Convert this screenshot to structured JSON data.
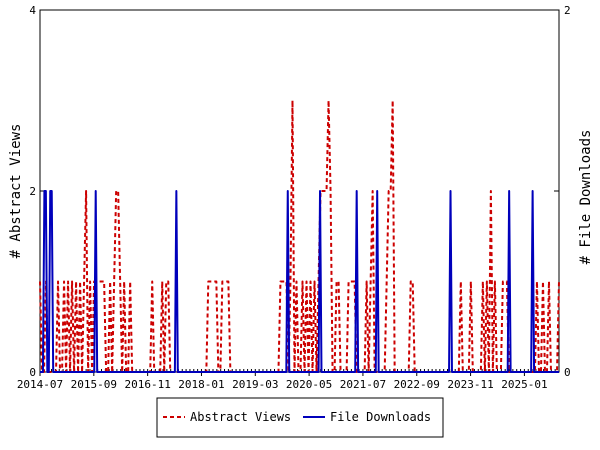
{
  "chart_data": {
    "type": "line",
    "ylabel_left": "# Abstract Views",
    "ylabel_right": "# File Downloads",
    "ylim_left": [
      0,
      4
    ],
    "ylim_right": [
      0,
      2
    ],
    "yticks_left": [
      "0",
      "2",
      "4"
    ],
    "yticks_right": [
      "0",
      "1",
      "2"
    ],
    "x_tick_labels": [
      "2014-07",
      "2015-09",
      "2016-11",
      "2018-01",
      "2019-03",
      "2020-05",
      "2021-07",
      "2022-09",
      "2023-11",
      "2025-01"
    ],
    "x_start": "2014-07",
    "x_end": "2025-10",
    "legend_position": "bottom-center",
    "grid": false,
    "series": [
      {
        "name": "Abstract Views",
        "axis": "left",
        "color": "#cc0000",
        "style": "dashed",
        "values": [
          1,
          0,
          0,
          1,
          0,
          0,
          0,
          0,
          0,
          1,
          0,
          0,
          1,
          0,
          1,
          0,
          1,
          0,
          1,
          0,
          1,
          0,
          1,
          2,
          0,
          1,
          0,
          1,
          1,
          1,
          1,
          1,
          1,
          0,
          0,
          1,
          0,
          1,
          2,
          2,
          1,
          0,
          1,
          0,
          0,
          1,
          0,
          0,
          0,
          0,
          0,
          0,
          0,
          0,
          0,
          0,
          1,
          0,
          0,
          0,
          0,
          1,
          0,
          1,
          1,
          0,
          0,
          0,
          0,
          0,
          0,
          0,
          0,
          0,
          0,
          0,
          0,
          0,
          0,
          0,
          0,
          0,
          0,
          0,
          1,
          1,
          1,
          1,
          1,
          0,
          0,
          1,
          1,
          1,
          1,
          0,
          0,
          0,
          0,
          0,
          0,
          0,
          0,
          0,
          0,
          0,
          0,
          0,
          0,
          0,
          0,
          0,
          0,
          0,
          0,
          0,
          0,
          0,
          0,
          0,
          1,
          1,
          1,
          1,
          0,
          1,
          3,
          0,
          1,
          0,
          0,
          1,
          0,
          1,
          0,
          1,
          0,
          1,
          0,
          1,
          2,
          2,
          2,
          2,
          3,
          2,
          0,
          0,
          1,
          1,
          0,
          0,
          0,
          0,
          1,
          1,
          1,
          1,
          0,
          0,
          0,
          0,
          0,
          1,
          0,
          1,
          2,
          0,
          0,
          0,
          0,
          0,
          0,
          1,
          2,
          2,
          3,
          0,
          0,
          0,
          0,
          0,
          0,
          0,
          0,
          1,
          1,
          0,
          0,
          0,
          0,
          0,
          0,
          0,
          0,
          0,
          0,
          0,
          0,
          0,
          0,
          0,
          0,
          0,
          0,
          0,
          0,
          0,
          0,
          0,
          1,
          0,
          0,
          0,
          0,
          1,
          0,
          0,
          0,
          0,
          0,
          1,
          0,
          1,
          0,
          2,
          0,
          1,
          0,
          0,
          0,
          1,
          1,
          1,
          0,
          0,
          0,
          0,
          0,
          0,
          0,
          0,
          0,
          0,
          0,
          0,
          0,
          0,
          1,
          0,
          0,
          1,
          0,
          0,
          1,
          0,
          0,
          0,
          0,
          1
        ]
      },
      {
        "name": "File Downloads",
        "axis": "right",
        "color": "#0000bb",
        "style": "solid",
        "values": [
          0,
          0,
          0,
          1,
          1,
          0,
          0,
          1,
          1,
          0,
          0,
          0,
          0,
          0,
          0,
          0,
          0,
          0,
          0,
          0,
          0,
          0,
          0,
          0,
          0,
          0,
          0,
          0,
          0,
          0,
          0,
          0,
          0,
          0,
          0,
          0,
          0,
          0,
          1,
          0,
          0,
          0,
          0,
          0,
          0,
          0,
          0,
          0,
          0,
          0,
          0,
          0,
          0,
          0,
          0,
          0,
          0,
          0,
          0,
          0,
          0,
          0,
          0,
          0,
          0,
          0,
          0,
          0,
          0,
          0,
          0,
          0,
          0,
          0,
          0,
          0,
          0,
          0,
          0,
          0,
          0,
          0,
          0,
          0,
          0,
          0,
          0,
          0,
          0,
          0,
          0,
          0,
          0,
          1,
          0,
          0,
          0,
          0,
          0,
          0,
          0,
          0,
          0,
          0,
          0,
          0,
          0,
          0,
          0,
          0,
          0,
          0,
          0,
          0,
          0,
          0,
          0,
          0,
          0,
          0,
          0,
          0,
          0,
          0,
          0,
          0,
          0,
          0,
          0,
          0,
          0,
          0,
          0,
          0,
          0,
          0,
          0,
          0,
          0,
          0,
          0,
          0,
          0,
          0,
          0,
          0,
          0,
          0,
          0,
          0,
          0,
          0,
          0,
          0,
          0,
          0,
          0,
          0,
          0,
          0,
          0,
          0,
          0,
          0,
          0,
          0,
          0,
          0,
          0,
          1,
          0,
          0,
          0,
          0,
          0,
          0,
          0,
          0,
          0,
          0,
          0,
          0,
          0,
          0,
          0,
          0,
          0,
          0,
          0,
          0,
          0,
          1,
          0,
          0,
          0,
          0,
          0,
          0,
          0,
          0,
          0,
          0,
          0,
          0,
          0,
          0,
          0,
          0,
          0,
          0,
          0,
          0,
          0,
          0,
          0,
          0,
          1,
          0,
          0,
          0,
          0,
          0,
          0,
          0,
          0,
          0,
          0,
          0,
          0,
          0,
          1,
          0,
          0,
          0,
          0,
          0,
          0,
          0,
          0,
          0,
          0,
          0,
          0,
          0,
          0,
          0,
          0,
          0,
          0,
          0,
          0,
          0,
          0,
          0,
          0,
          0,
          0,
          0,
          0,
          0,
          0,
          0,
          0,
          0,
          0,
          0,
          0,
          0,
          0,
          0,
          0,
          0,
          0,
          0,
          0,
          0,
          0,
          0,
          0,
          0,
          1,
          0,
          0,
          0,
          0,
          0,
          0,
          0,
          0,
          0,
          0,
          0,
          0,
          0,
          0,
          0,
          0,
          0,
          0,
          0,
          0,
          0,
          0,
          0,
          0,
          0,
          0,
          0,
          0,
          0,
          0,
          0,
          0,
          0,
          0,
          0,
          0,
          0,
          0,
          0,
          1,
          0,
          0,
          0,
          0,
          0,
          0,
          0,
          0,
          0,
          0,
          0,
          0,
          0,
          0,
          0,
          1,
          0,
          0,
          0,
          0,
          0,
          0,
          0,
          0,
          0,
          0,
          0,
          0,
          0,
          0,
          0,
          0,
          0,
          0
        ]
      }
    ]
  }
}
